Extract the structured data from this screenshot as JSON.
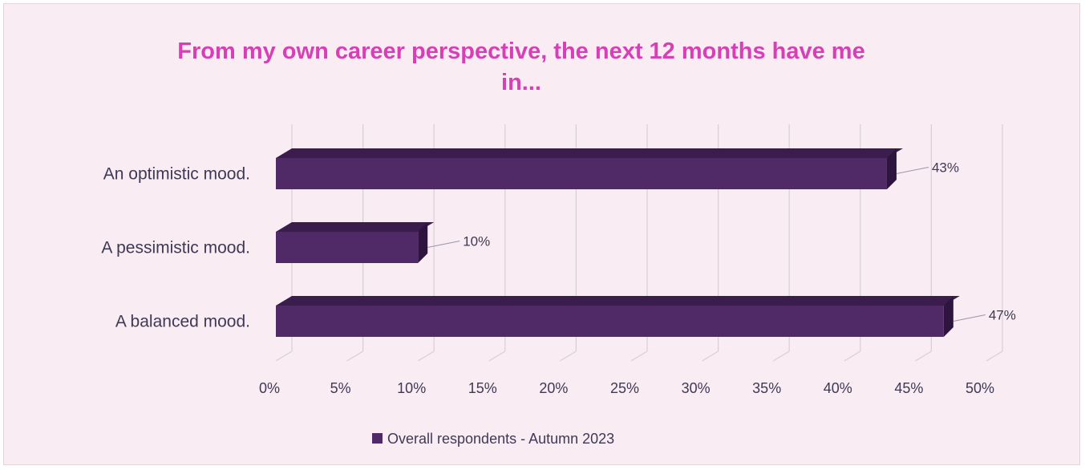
{
  "chart_data": {
    "type": "bar",
    "orientation": "horizontal",
    "title": "From my own career perspective, the next 12 months have me in...",
    "title_lines": [
      "From my own career perspective, the next 12 months have me",
      "in..."
    ],
    "categories": [
      "An optimistic mood.",
      "A pessimistic mood.",
      "A balanced mood."
    ],
    "series": [
      {
        "name": "Overall respondents - Autumn 2023",
        "values": [
          43,
          10,
          47
        ],
        "data_labels": [
          "43%",
          "10%",
          "47%"
        ],
        "color": "#4f2a66"
      }
    ],
    "xlim": [
      0,
      50
    ],
    "x_ticks": [
      0,
      5,
      10,
      15,
      20,
      25,
      30,
      35,
      40,
      45,
      50
    ],
    "x_tick_labels": [
      "0%",
      "5%",
      "10%",
      "15%",
      "20%",
      "25%",
      "30%",
      "35%",
      "40%",
      "45%",
      "50%"
    ],
    "grid": true,
    "legend": "bottom",
    "colors": {
      "title": "#d63fb5",
      "background": "#f9ecf3",
      "bar_front": "#4f2a66",
      "bar_top": "#3a1c4d",
      "bar_side": "#2e1540",
      "grid": "#d6d0d6",
      "text": "#3e3a55"
    }
  }
}
